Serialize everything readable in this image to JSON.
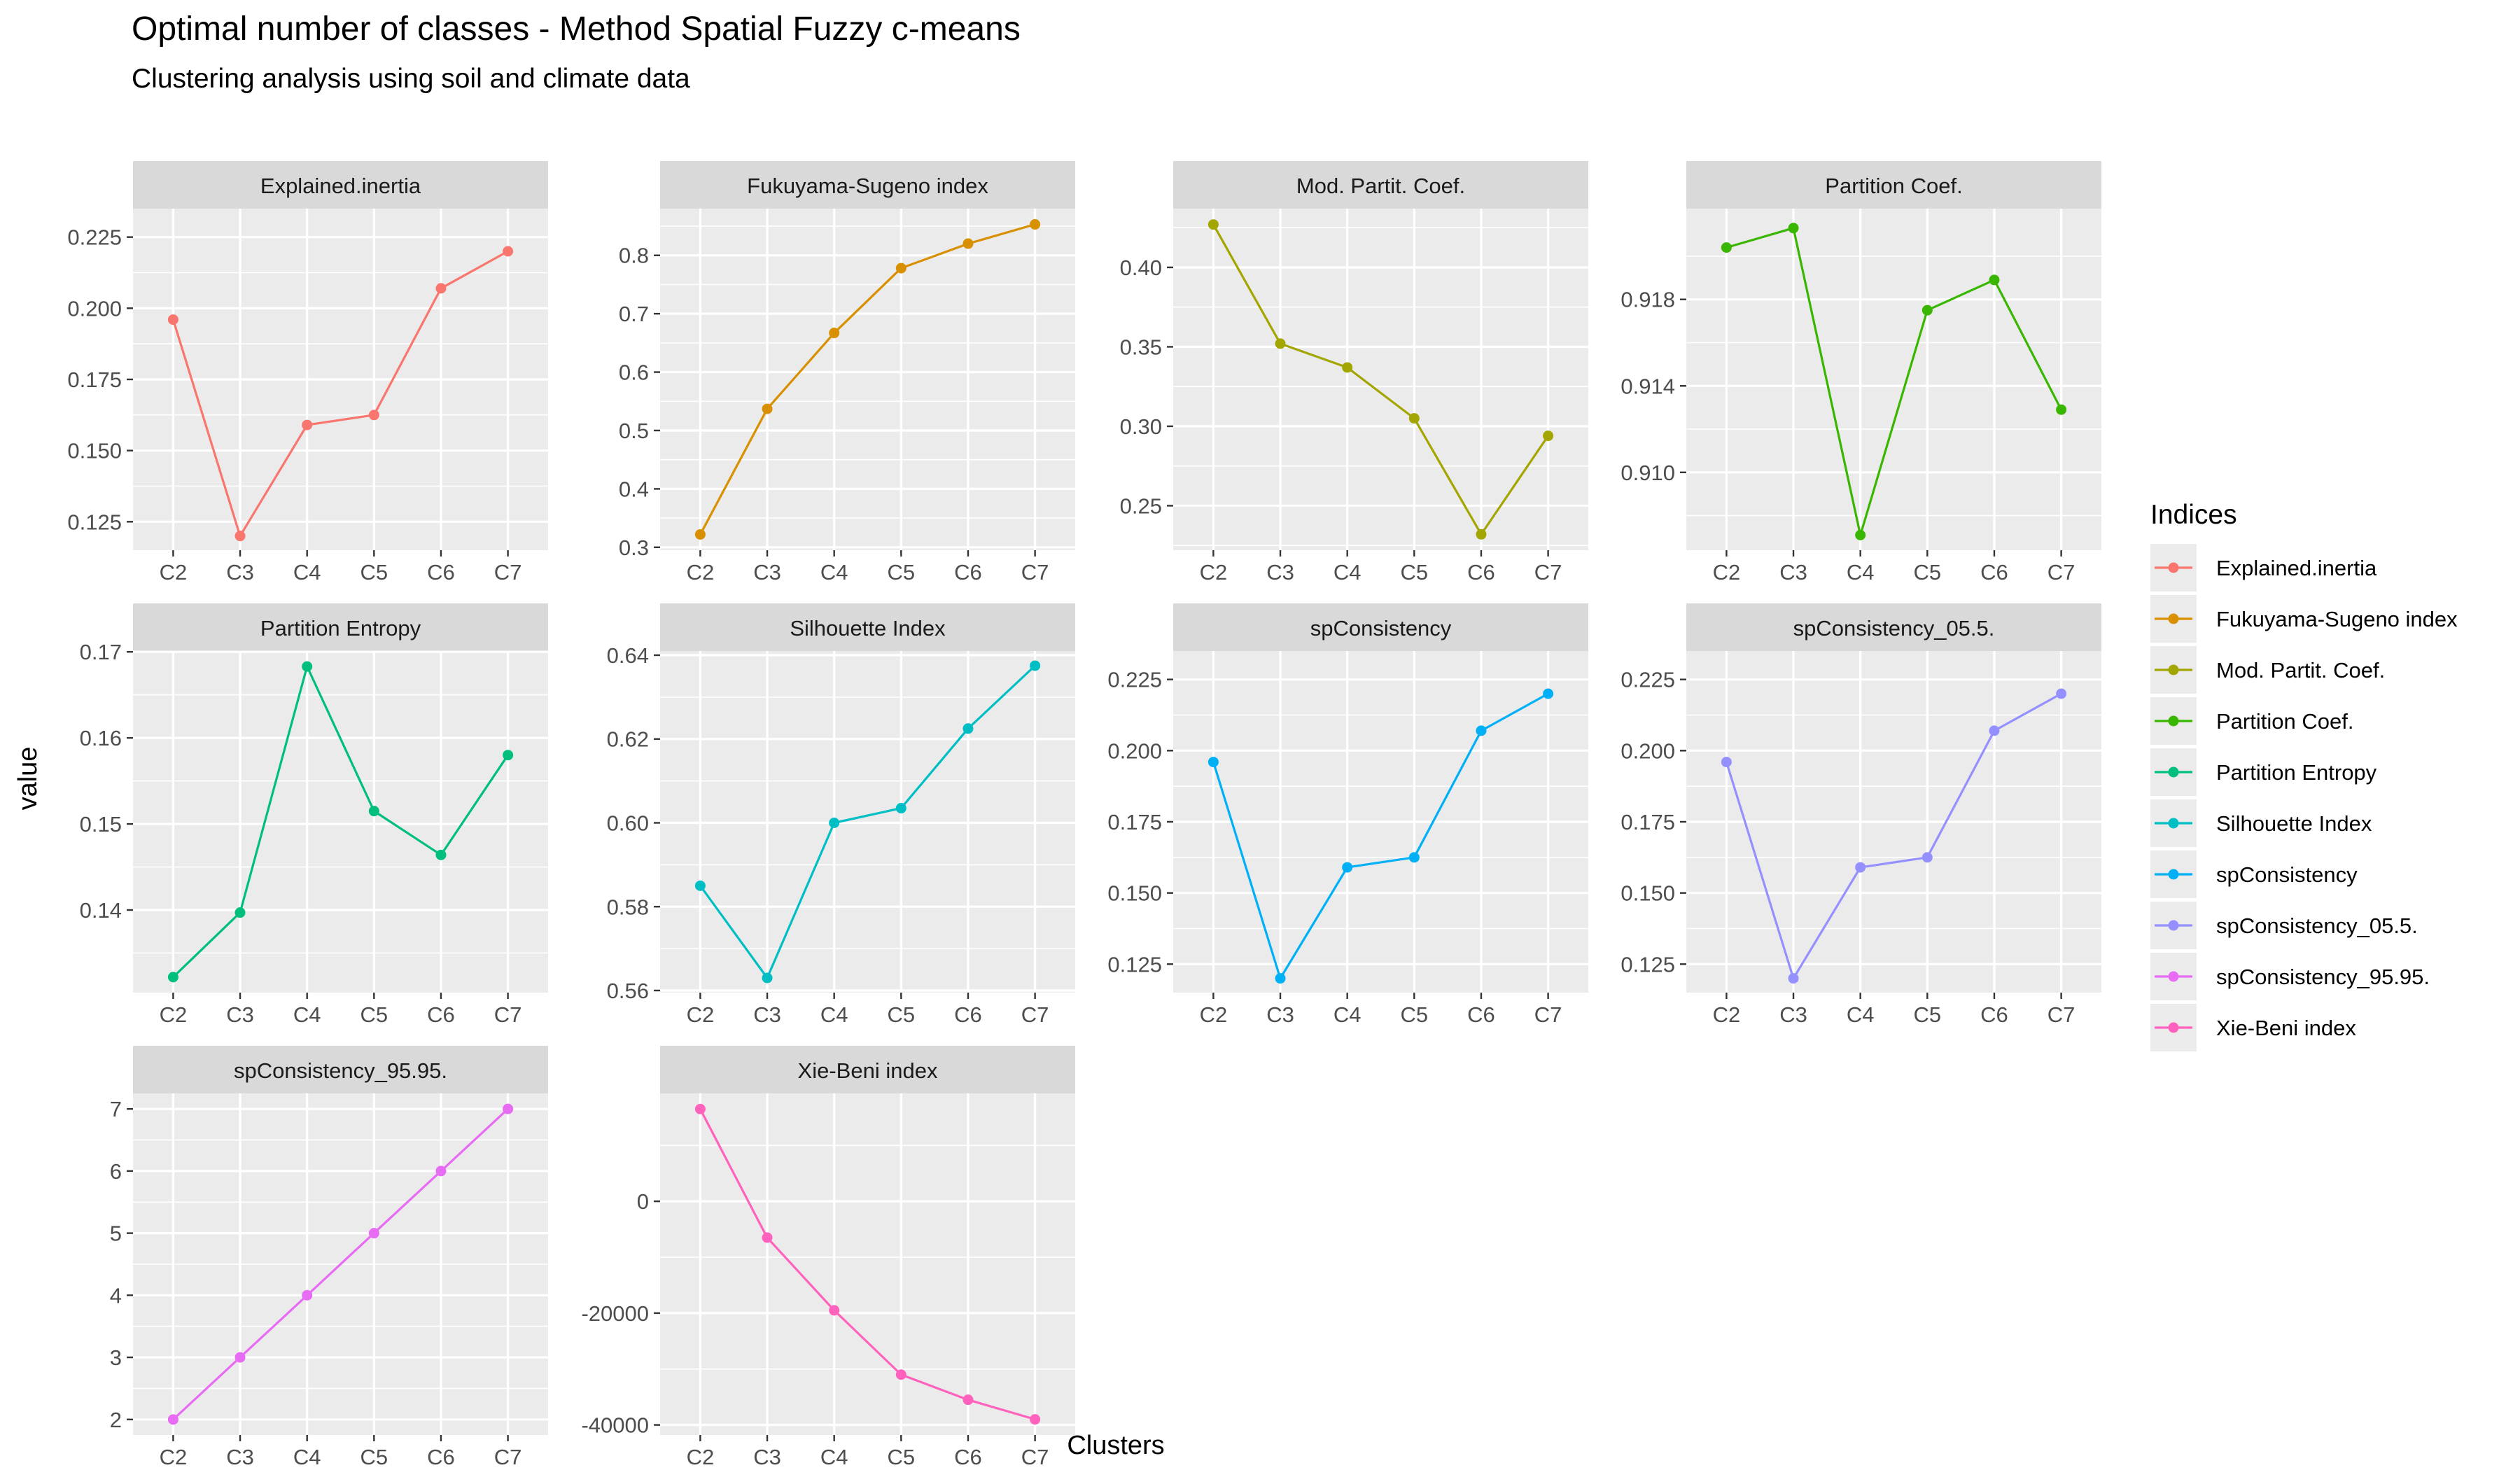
{
  "figure": {
    "title": "Optimal number of classes - Method Spatial Fuzzy c-means",
    "subtitle": "Clustering analysis using soil and climate data",
    "xlabel": "Clusters",
    "ylabel": "value",
    "legend_title": "Indices",
    "legend_position": "right"
  },
  "chart_data": [
    {
      "type": "line",
      "title": "Explained.inertia",
      "color": "#F8766D",
      "categories": [
        "C2",
        "C3",
        "C4",
        "C5",
        "C6",
        "C7"
      ],
      "values": [
        0.196,
        0.12,
        0.159,
        0.1625,
        0.207,
        0.22
      ],
      "ylim": [
        0.115,
        0.235
      ],
      "yticks": [
        0.125,
        0.15,
        0.175,
        0.2,
        0.225
      ],
      "ytick_labels": [
        "0.125",
        "0.150",
        "0.175",
        "0.200",
        "0.225"
      ],
      "grid": true
    },
    {
      "type": "line",
      "title": "Fukuyama-Sugeno index",
      "color": "#D89000",
      "categories": [
        "C2",
        "C3",
        "C4",
        "C5",
        "C6",
        "C7"
      ],
      "values": [
        0.322,
        0.537,
        0.667,
        0.778,
        0.82,
        0.853
      ],
      "ylim": [
        0.295,
        0.88
      ],
      "yticks": [
        0.3,
        0.4,
        0.5,
        0.6,
        0.7,
        0.8
      ],
      "ytick_labels": [
        "0.3",
        "0.4",
        "0.5",
        "0.6",
        "0.7",
        "0.8"
      ],
      "grid": true
    },
    {
      "type": "line",
      "title": "Mod. Partit. Coef.",
      "color": "#A3A500",
      "categories": [
        "C2",
        "C3",
        "C4",
        "C5",
        "C6",
        "C7"
      ],
      "values": [
        0.427,
        0.352,
        0.337,
        0.305,
        0.232,
        0.294
      ],
      "ylim": [
        0.222,
        0.437
      ],
      "yticks": [
        0.25,
        0.3,
        0.35,
        0.4
      ],
      "ytick_labels": [
        "0.25",
        "0.30",
        "0.35",
        "0.40"
      ],
      "grid": true
    },
    {
      "type": "line",
      "title": "Partition Coef.",
      "color": "#39B600",
      "categories": [
        "C2",
        "C3",
        "C4",
        "C5",
        "C6",
        "C7"
      ],
      "values": [
        0.9204,
        0.9213,
        0.9071,
        0.9175,
        0.9189,
        0.9129
      ],
      "ylim": [
        0.9064,
        0.9222
      ],
      "yticks": [
        0.91,
        0.914,
        0.918
      ],
      "ytick_labels": [
        "0.910",
        "0.914",
        "0.918"
      ],
      "grid": true
    },
    {
      "type": "line",
      "title": "Partition Entropy",
      "color": "#00BF7D",
      "categories": [
        "C2",
        "C3",
        "C4",
        "C5",
        "C6",
        "C7"
      ],
      "values": [
        0.1322,
        0.1397,
        0.1683,
        0.1515,
        0.1464,
        0.158
      ],
      "ylim": [
        0.1304,
        0.1701
      ],
      "yticks": [
        0.14,
        0.15,
        0.16,
        0.17
      ],
      "ytick_labels": [
        "0.14",
        "0.15",
        "0.16",
        "0.17"
      ],
      "grid": true
    },
    {
      "type": "line",
      "title": "Silhouette Index",
      "color": "#00BFC4",
      "categories": [
        "C2",
        "C3",
        "C4",
        "C5",
        "C6",
        "C7"
      ],
      "values": [
        0.585,
        0.563,
        0.6,
        0.6035,
        0.6225,
        0.6375
      ],
      "ylim": [
        0.5595,
        0.641
      ],
      "yticks": [
        0.56,
        0.58,
        0.6,
        0.62,
        0.64
      ],
      "ytick_labels": [
        "0.56",
        "0.58",
        "0.60",
        "0.62",
        "0.64"
      ],
      "grid": true
    },
    {
      "type": "line",
      "title": "spConsistency",
      "color": "#00B0F6",
      "categories": [
        "C2",
        "C3",
        "C4",
        "C5",
        "C6",
        "C7"
      ],
      "values": [
        0.196,
        0.12,
        0.159,
        0.1625,
        0.207,
        0.22
      ],
      "ylim": [
        0.115,
        0.235
      ],
      "yticks": [
        0.125,
        0.15,
        0.175,
        0.2,
        0.225
      ],
      "ytick_labels": [
        "0.125",
        "0.150",
        "0.175",
        "0.200",
        "0.225"
      ],
      "grid": true
    },
    {
      "type": "line",
      "title": "spConsistency_05.5.",
      "color": "#9590FF",
      "categories": [
        "C2",
        "C3",
        "C4",
        "C5",
        "C6",
        "C7"
      ],
      "values": [
        0.196,
        0.12,
        0.159,
        0.1625,
        0.207,
        0.22
      ],
      "ylim": [
        0.115,
        0.235
      ],
      "yticks": [
        0.125,
        0.15,
        0.175,
        0.2,
        0.225
      ],
      "ytick_labels": [
        "0.125",
        "0.150",
        "0.175",
        "0.200",
        "0.225"
      ],
      "grid": true
    },
    {
      "type": "line",
      "title": "spConsistency_95.95.",
      "color": "#E76BF3",
      "categories": [
        "C2",
        "C3",
        "C4",
        "C5",
        "C6",
        "C7"
      ],
      "values": [
        2,
        3,
        4,
        5,
        6,
        7
      ],
      "ylim": [
        1.75,
        7.25
      ],
      "yticks": [
        2,
        3,
        4,
        5,
        6,
        7
      ],
      "ytick_labels": [
        "2",
        "3",
        "4",
        "5",
        "6",
        "7"
      ],
      "grid": true
    },
    {
      "type": "line",
      "title": "Xie-Beni index",
      "color": "#FF62BC",
      "categories": [
        "C2",
        "C3",
        "C4",
        "C5",
        "C6",
        "C7"
      ],
      "values": [
        16500,
        -6500,
        -19500,
        -31000,
        -35500,
        -39000
      ],
      "ylim": [
        -41800,
        19300
      ],
      "yticks": [
        -40000,
        -20000,
        0
      ],
      "ytick_labels": [
        "-40000",
        "-20000",
        "0"
      ],
      "grid": true
    }
  ],
  "legend": [
    {
      "label": "Explained.inertia",
      "color": "#F8766D"
    },
    {
      "label": "Fukuyama-Sugeno index",
      "color": "#D89000"
    },
    {
      "label": "Mod. Partit. Coef.",
      "color": "#A3A500"
    },
    {
      "label": "Partition Coef.",
      "color": "#39B600"
    },
    {
      "label": "Partition Entropy",
      "color": "#00BF7D"
    },
    {
      "label": "Silhouette Index",
      "color": "#00BFC4"
    },
    {
      "label": "spConsistency",
      "color": "#00B0F6"
    },
    {
      "label": "spConsistency_05.5.",
      "color": "#9590FF"
    },
    {
      "label": "spConsistency_95.95.",
      "color": "#E76BF3"
    },
    {
      "label": "Xie-Beni index",
      "color": "#FF62BC"
    }
  ]
}
